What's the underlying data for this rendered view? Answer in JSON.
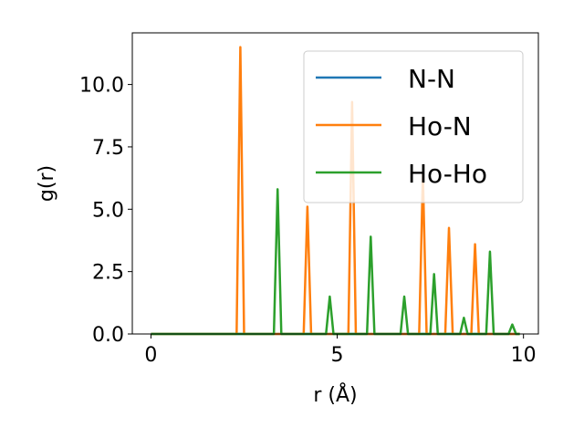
{
  "chart_data": {
    "type": "line",
    "xlabel": "r (Å)",
    "ylabel": "g(r)",
    "xlim": [
      -0.5,
      10.4
    ],
    "ylim": [
      0,
      12.07
    ],
    "xticks": [
      0,
      5,
      10
    ],
    "xtick_labels": [
      "0",
      "5",
      "10"
    ],
    "yticks": [
      0,
      2.5,
      5,
      7.5,
      10
    ],
    "ytick_labels": [
      "0.0",
      "2.5",
      "5.0",
      "7.5",
      "10.0"
    ],
    "grid": false,
    "legend_position": "top-right",
    "series": [
      {
        "name": "N-N",
        "color": "#1f77b4",
        "points": [
          [
            0,
            0
          ],
          [
            9.9,
            0
          ]
        ]
      },
      {
        "name": "Ho-N",
        "color": "#ff7f0e",
        "points": [
          [
            0,
            0
          ],
          [
            2.3,
            0
          ],
          [
            2.4,
            11.5
          ],
          [
            2.5,
            0
          ],
          [
            4.1,
            0
          ],
          [
            4.2,
            5.1
          ],
          [
            4.3,
            0
          ],
          [
            5.3,
            0
          ],
          [
            5.4,
            9.3
          ],
          [
            5.5,
            0
          ],
          [
            7.2,
            0
          ],
          [
            7.3,
            6.4
          ],
          [
            7.4,
            0
          ],
          [
            7.9,
            0
          ],
          [
            8.0,
            4.25
          ],
          [
            8.1,
            0
          ],
          [
            8.6,
            0
          ],
          [
            8.7,
            3.6
          ],
          [
            8.8,
            0
          ],
          [
            9.9,
            0
          ]
        ]
      },
      {
        "name": "Ho-Ho",
        "color": "#2ca02c",
        "points": [
          [
            0,
            0
          ],
          [
            3.3,
            0
          ],
          [
            3.4,
            5.8
          ],
          [
            3.5,
            0
          ],
          [
            4.7,
            0
          ],
          [
            4.8,
            1.5
          ],
          [
            4.9,
            0
          ],
          [
            5.8,
            0
          ],
          [
            5.9,
            3.9
          ],
          [
            6.0,
            0
          ],
          [
            6.7,
            0
          ],
          [
            6.8,
            1.5
          ],
          [
            6.9,
            0
          ],
          [
            7.5,
            0
          ],
          [
            7.6,
            2.4
          ],
          [
            7.7,
            0
          ],
          [
            8.3,
            0
          ],
          [
            8.4,
            0.65
          ],
          [
            8.5,
            0
          ],
          [
            9.0,
            0
          ],
          [
            9.1,
            3.3
          ],
          [
            9.2,
            0
          ],
          [
            9.6,
            0
          ],
          [
            9.7,
            0.38
          ],
          [
            9.8,
            0
          ],
          [
            9.9,
            0
          ]
        ]
      }
    ]
  }
}
